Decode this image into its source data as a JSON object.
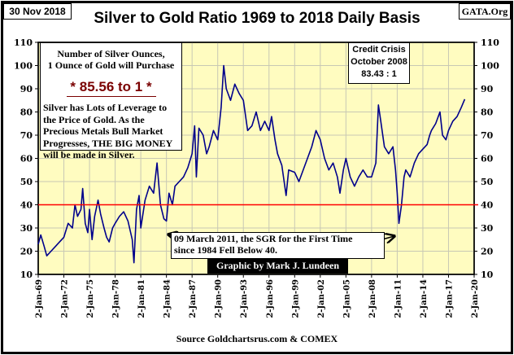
{
  "header": {
    "date": "30 Nov 2018",
    "site": "GATA.Org",
    "title": "Silver to Gold Ratio 1969 to 2018 Daily Basis"
  },
  "info_box": {
    "heading1": "Number  of Silver Ounces,",
    "heading2": "1 Ounce of Gold will Purchase",
    "ratio": "* 85.56 to 1 *",
    "body": [
      "Silver has Lots of Leverage to",
      "the Price of Gold.  As the",
      "Precious Metals Bull Market",
      "Progresses,  THE BIG MONEY",
      "will be made in Silver."
    ]
  },
  "credit_crisis": {
    "line1": "Credit Crisis",
    "line2": "October 2008",
    "line3": "83.43 : 1"
  },
  "annotation": {
    "line1": "09 March 2011, the SGR for the First Time",
    "line2": "since 1984 Fell Below 40."
  },
  "graphic_credit": "Graphic by Mark J. Lundeen",
  "source": "Source Goldchartsrus.com & COMEX",
  "chart_data": {
    "type": "line",
    "title": "Silver to Gold Ratio 1969 to 2018 Daily Basis",
    "ylim": [
      10,
      110
    ],
    "yticks": [
      10,
      20,
      30,
      40,
      50,
      60,
      70,
      80,
      90,
      100,
      110
    ],
    "xlim": [
      1969,
      2020
    ],
    "xticks": [
      "2-Jan-69",
      "2-Jan-72",
      "2-Jan-75",
      "2-Jan-78",
      "2-Jan-81",
      "2-Jan-84",
      "2-Jan-87",
      "2-Jan-90",
      "2-Jan-93",
      "2-Jan-96",
      "2-Jan-99",
      "2-Jan-02",
      "2-Jan-05",
      "2-Jan-08",
      "2-Jan-11",
      "2-Jan-14",
      "2-Jan-17",
      "2-Jan-20"
    ],
    "grid": true,
    "reference_line": {
      "y": 40,
      "color": "#ff0000"
    },
    "series_color": "#00008b",
    "background": "#fffcc0",
    "x": [
      1969.0,
      1969.3,
      1969.7,
      1970.0,
      1970.5,
      1971.0,
      1971.5,
      1972.0,
      1972.5,
      1973.0,
      1973.3,
      1973.6,
      1974.0,
      1974.2,
      1974.5,
      1974.8,
      1975.0,
      1975.3,
      1975.6,
      1976.0,
      1976.3,
      1976.7,
      1977.0,
      1977.3,
      1977.7,
      1978.0,
      1978.5,
      1979.0,
      1979.5,
      1980.0,
      1980.2,
      1980.5,
      1980.8,
      1981.0,
      1981.5,
      1982.0,
      1982.5,
      1982.9,
      1983.3,
      1983.7,
      1984.0,
      1984.3,
      1984.7,
      1985.0,
      1985.5,
      1986.0,
      1986.5,
      1987.0,
      1987.3,
      1987.5,
      1987.8,
      1988.3,
      1988.7,
      1989.0,
      1989.5,
      1990.0,
      1990.4,
      1990.7,
      1991.0,
      1991.5,
      1992.0,
      1992.5,
      1993.0,
      1993.5,
      1994.0,
      1994.5,
      1995.0,
      1995.5,
      1996.0,
      1996.3,
      1996.7,
      1997.0,
      1997.5,
      1998.0,
      1998.3,
      1999.0,
      1999.5,
      2000.0,
      2000.5,
      2001.0,
      2001.5,
      2002.0,
      2002.5,
      2003.0,
      2003.5,
      2004.0,
      2004.3,
      2004.7,
      2005.0,
      2005.5,
      2006.0,
      2006.5,
      2007.0,
      2007.5,
      2008.0,
      2008.5,
      2008.8,
      2009.0,
      2009.5,
      2010.0,
      2010.5,
      2010.8,
      2011.0,
      2011.2,
      2011.5,
      2011.8,
      2012.0,
      2012.5,
      2013.0,
      2013.5,
      2014.0,
      2014.5,
      2014.8,
      2015.0,
      2015.5,
      2016.0,
      2016.3,
      2016.7,
      2017.0,
      2017.5,
      2018.0,
      2018.5,
      2018.9
    ],
    "y": [
      23,
      27,
      22,
      18,
      20,
      22,
      24,
      26,
      32,
      30,
      40,
      35,
      38,
      47,
      32,
      28,
      38,
      25,
      35,
      42,
      36,
      30,
      26,
      24,
      30,
      32,
      35,
      37,
      33,
      25,
      15,
      38,
      44,
      30,
      42,
      48,
      45,
      58,
      40,
      34,
      33,
      45,
      40,
      48,
      50,
      52,
      56,
      62,
      74,
      52,
      73,
      70,
      62,
      65,
      72,
      68,
      82,
      100,
      90,
      85,
      92,
      88,
      85,
      72,
      74,
      80,
      72,
      76,
      72,
      78,
      68,
      62,
      57,
      44,
      55,
      54,
      50,
      55,
      60,
      65,
      72,
      68,
      60,
      55,
      58,
      52,
      45,
      55,
      60,
      52,
      48,
      52,
      55,
      52,
      52,
      58,
      83,
      78,
      65,
      62,
      65,
      55,
      45,
      32,
      40,
      52,
      55,
      52,
      58,
      62,
      64,
      66,
      70,
      72,
      75,
      80,
      70,
      68,
      72,
      76,
      78,
      82,
      85.5
    ]
  }
}
